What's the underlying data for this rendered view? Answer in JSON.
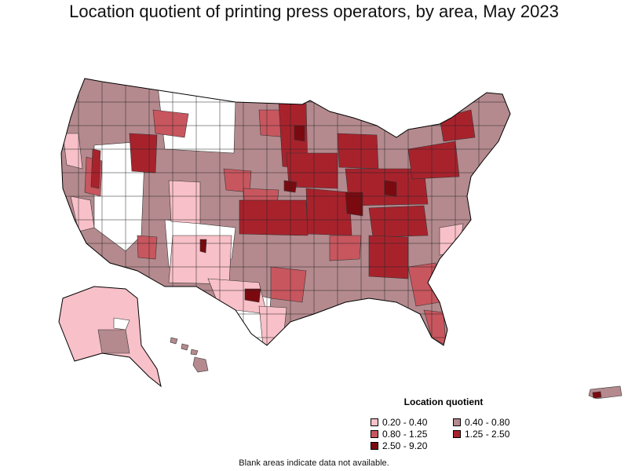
{
  "title": "Location quotient of printing press operators, by area, May 2023",
  "legend": {
    "title": "Location quotient",
    "items": [
      {
        "label": "0.20 - 0.40",
        "color": "#f8c0c8"
      },
      {
        "label": "0.40 - 0.80",
        "color": "#b48a8e"
      },
      {
        "label": "0.80 - 1.25",
        "color": "#c8565e"
      },
      {
        "label": "1.25 - 2.50",
        "color": "#a8222c"
      },
      {
        "label": "2.50 - 9.20",
        "color": "#7a0a10"
      }
    ]
  },
  "footnote": "Blank areas indicate data not available."
}
